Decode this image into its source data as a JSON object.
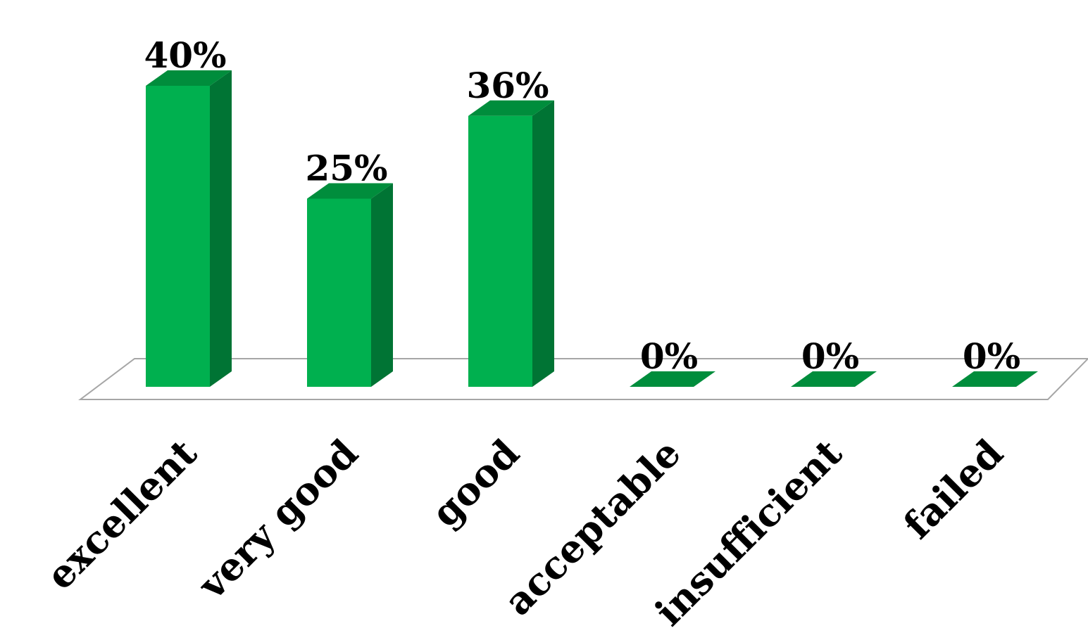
{
  "chart_data": {
    "type": "bar",
    "style": "3d-column",
    "categories": [
      "excellent",
      "very good",
      "good",
      "acceptable",
      "insufficient",
      "failed"
    ],
    "values": [
      40,
      25,
      36,
      0,
      0,
      0
    ],
    "data_labels": [
      "40%",
      "25%",
      "36%",
      "0%",
      "0%",
      "0%"
    ],
    "unit": "%",
    "title": "",
    "xlabel": "",
    "ylabel": "",
    "ylim": [
      0,
      40
    ],
    "grid": false,
    "legend": "none",
    "colors": {
      "bar_front": "#00b04f",
      "bar_side": "#007434",
      "bar_top": "#008d3c",
      "floor_line": "#a6a6a6"
    }
  }
}
